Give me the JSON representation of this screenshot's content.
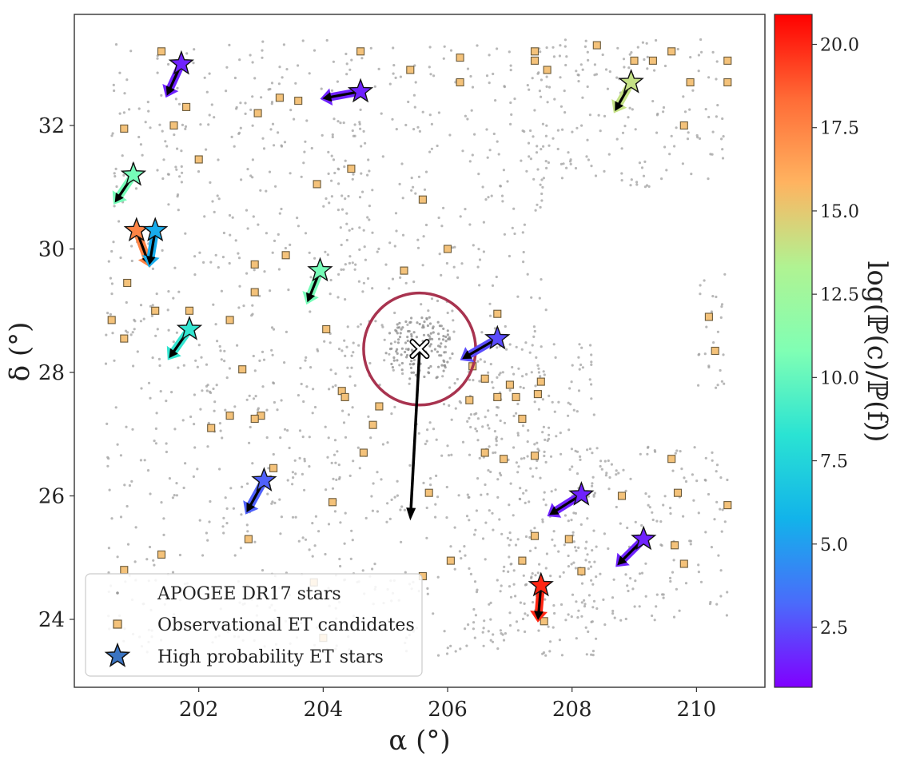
{
  "chart_data": {
    "type": "scatter",
    "xlabel": "α (°)",
    "ylabel": "δ (°)",
    "xlim": [
      200.0,
      211.1
    ],
    "ylim": [
      22.9,
      33.8
    ],
    "xticks": [
      202,
      204,
      206,
      208,
      210
    ],
    "yticks": [
      24,
      26,
      28,
      30,
      32
    ],
    "grid": false,
    "legend_position": "bottom-left",
    "legend": [
      {
        "label": "APOGEE DR17 stars",
        "marker": "dot"
      },
      {
        "label": "Observational ET candidates",
        "marker": "square"
      },
      {
        "label": "High probability ET stars",
        "marker": "star"
      }
    ],
    "colorbar": {
      "label": "log(ℙ(c)/ℙ(f))",
      "range": [
        0.7,
        20.9
      ],
      "ticks": [
        2.5,
        5.0,
        7.5,
        10.0,
        12.5,
        15.0,
        17.5,
        20.0
      ],
      "tick_labels": [
        "2.5",
        "5.0",
        "7.5",
        "10.0",
        "12.5",
        "15.0",
        "17.5",
        "20.0"
      ],
      "colormap": "rainbow"
    },
    "cluster": {
      "center": [
        205.55,
        28.38
      ],
      "circle_radius_deg": 0.9,
      "proper_motion_arrow_end": [
        205.4,
        25.6
      ],
      "circle_color": "#a8334f"
    },
    "background_regions": [
      {
        "x": [
          200.5,
          204.5
        ],
        "y": [
          23.4,
          33.4
        ],
        "n": 650
      },
      {
        "x": [
          204.2,
          207.6
        ],
        "y": [
          23.4,
          33.3
        ],
        "n": 520
      },
      {
        "x": [
          206.3,
          208.4
        ],
        "y": [
          23.4,
          28.6
        ],
        "n": 260
      },
      {
        "x": [
          207.3,
          210.5
        ],
        "y": [
          31.0,
          33.4
        ],
        "n": 170
      },
      {
        "x": [
          207.8,
          210.5
        ],
        "y": [
          23.9,
          26.8
        ],
        "n": 170
      },
      {
        "x": [
          210.0,
          210.5
        ],
        "y": [
          27.7,
          29.6
        ],
        "n": 25
      }
    ],
    "et_candidates": [
      [
        201.4,
        33.2
      ],
      [
        204.6,
        33.2
      ],
      [
        205.4,
        32.9
      ],
      [
        206.2,
        33.1
      ],
      [
        207.4,
        33.2
      ],
      [
        207.6,
        32.9
      ],
      [
        207.4,
        33.05
      ],
      [
        208.4,
        33.3
      ],
      [
        209.0,
        33.05
      ],
      [
        209.3,
        33.05
      ],
      [
        209.6,
        33.2
      ],
      [
        210.5,
        33.05
      ],
      [
        210.5,
        32.7
      ],
      [
        209.9,
        32.7
      ],
      [
        209.8,
        32.0
      ],
      [
        206.2,
        32.7
      ],
      [
        203.3,
        32.45
      ],
      [
        203.6,
        32.4
      ],
      [
        202.95,
        32.2
      ],
      [
        201.8,
        32.3
      ],
      [
        201.6,
        32.0
      ],
      [
        200.8,
        31.95
      ],
      [
        202.0,
        31.45
      ],
      [
        204.45,
        31.3
      ],
      [
        203.9,
        31.05
      ],
      [
        205.6,
        30.8
      ],
      [
        206.0,
        30.0
      ],
      [
        205.3,
        29.65
      ],
      [
        203.4,
        29.9
      ],
      [
        202.9,
        29.75
      ],
      [
        202.9,
        29.3
      ],
      [
        200.85,
        29.45
      ],
      [
        201.3,
        29.0
      ],
      [
        201.85,
        29.0
      ],
      [
        200.6,
        28.85
      ],
      [
        200.8,
        28.55
      ],
      [
        202.5,
        28.85
      ],
      [
        204.05,
        28.7
      ],
      [
        206.8,
        28.95
      ],
      [
        210.2,
        28.9
      ],
      [
        210.3,
        28.35
      ],
      [
        206.4,
        28.1
      ],
      [
        202.7,
        28.05
      ],
      [
        206.6,
        27.9
      ],
      [
        207.0,
        27.8
      ],
      [
        207.5,
        27.85
      ],
      [
        206.8,
        27.6
      ],
      [
        204.3,
        27.7
      ],
      [
        204.35,
        27.6
      ],
      [
        204.9,
        27.45
      ],
      [
        206.35,
        27.55
      ],
      [
        207.1,
        27.6
      ],
      [
        207.45,
        27.65
      ],
      [
        207.2,
        27.25
      ],
      [
        203.0,
        27.3
      ],
      [
        202.5,
        27.3
      ],
      [
        202.9,
        27.25
      ],
      [
        202.2,
        27.1
      ],
      [
        204.8,
        27.15
      ],
      [
        204.65,
        26.7
      ],
      [
        206.6,
        26.7
      ],
      [
        206.9,
        26.6
      ],
      [
        207.4,
        26.65
      ],
      [
        203.2,
        26.45
      ],
      [
        205.7,
        26.05
      ],
      [
        204.15,
        25.9
      ],
      [
        209.6,
        26.6
      ],
      [
        209.7,
        26.05
      ],
      [
        208.8,
        26.0
      ],
      [
        210.5,
        25.85
      ],
      [
        207.4,
        25.35
      ],
      [
        207.95,
        25.3
      ],
      [
        209.65,
        25.2
      ],
      [
        208.15,
        24.78
      ],
      [
        209.8,
        24.9
      ],
      [
        207.2,
        24.95
      ],
      [
        206.05,
        24.95
      ],
      [
        205.6,
        24.7
      ],
      [
        202.8,
        25.3
      ],
      [
        201.4,
        25.05
      ],
      [
        200.8,
        24.8
      ],
      [
        203.85,
        24.6
      ],
      [
        207.55,
        23.97
      ],
      [
        204.0,
        23.7
      ]
    ],
    "et_stars": [
      {
        "x": 201.72,
        "y": 33.0,
        "dx": -0.25,
        "dy": -0.55,
        "logP": 1.5
      },
      {
        "x": 204.6,
        "y": 32.55,
        "dx": -0.65,
        "dy": -0.12,
        "logP": 1.5
      },
      {
        "x": 208.95,
        "y": 32.7,
        "dx": -0.28,
        "dy": -0.5,
        "logP": 14.0
      },
      {
        "x": 200.95,
        "y": 31.2,
        "dx": -0.32,
        "dy": -0.48,
        "logP": 10.5
      },
      {
        "x": 201.0,
        "y": 30.3,
        "dx": 0.22,
        "dy": -0.6,
        "logP": 17.5
      },
      {
        "x": 201.3,
        "y": 30.3,
        "dx": -0.1,
        "dy": -0.6,
        "logP": 5.5
      },
      {
        "x": 203.95,
        "y": 29.65,
        "dx": -0.22,
        "dy": -0.55,
        "logP": 10.5
      },
      {
        "x": 201.85,
        "y": 28.7,
        "dx": -0.35,
        "dy": -0.5,
        "logP": 8.5
      },
      {
        "x": 206.8,
        "y": 28.55,
        "dx": -0.6,
        "dy": -0.35,
        "logP": 2.5
      },
      {
        "x": 203.05,
        "y": 26.25,
        "dx": -0.3,
        "dy": -0.55,
        "logP": 3.0
      },
      {
        "x": 208.15,
        "y": 26.02,
        "dx": -0.55,
        "dy": -0.35,
        "logP": 1.5
      },
      {
        "x": 209.15,
        "y": 25.3,
        "dx": -0.45,
        "dy": -0.45,
        "logP": 1.5
      },
      {
        "x": 207.5,
        "y": 24.55,
        "dx": -0.05,
        "dy": -0.6,
        "logP": 20.0
      }
    ]
  }
}
